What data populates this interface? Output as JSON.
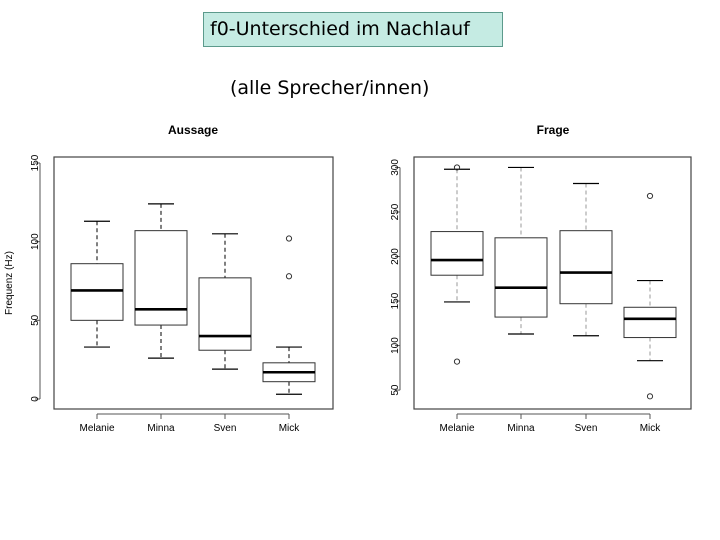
{
  "slide": {
    "title": "f0-Unterschied im Nachlauf",
    "subtitle": "(alle Sprecher/innen)"
  },
  "chart_data": [
    {
      "type": "box",
      "title": "Aussage",
      "ylabel": "Frequenz (Hz)",
      "ylim": [
        0,
        150
      ],
      "yticks": [
        0,
        50,
        100,
        150
      ],
      "categories": [
        "Melanie",
        "Minna",
        "Sven",
        "Mick"
      ],
      "boxes": [
        {
          "min": 33,
          "q1": 50,
          "median": 69,
          "q3": 86,
          "max": 113,
          "outliers": []
        },
        {
          "min": 26,
          "q1": 47,
          "median": 57,
          "q3": 107,
          "max": 124,
          "outliers": []
        },
        {
          "min": 19,
          "q1": 31,
          "median": 40,
          "q3": 77,
          "max": 105,
          "outliers": []
        },
        {
          "min": 3,
          "q1": 11,
          "median": 17,
          "q3": 23,
          "max": 33,
          "outliers": [
            78,
            102
          ]
        }
      ]
    },
    {
      "type": "box",
      "title": "Frage",
      "ylabel": "",
      "ylim": [
        40,
        305
      ],
      "yticks": [
        50,
        100,
        150,
        200,
        250,
        300
      ],
      "categories": [
        "Melanie",
        "Minna",
        "Sven",
        "Mick"
      ],
      "boxes": [
        {
          "min": 149,
          "q1": 179,
          "median": 196,
          "q3": 228,
          "max": 298,
          "outliers": [
            300,
            82
          ]
        },
        {
          "min": 113,
          "q1": 132,
          "median": 165,
          "q3": 221,
          "max": 300,
          "outliers": []
        },
        {
          "min": 111,
          "q1": 147,
          "median": 182,
          "q3": 229,
          "max": 282,
          "outliers": []
        },
        {
          "min": 83,
          "q1": 109,
          "median": 130,
          "q3": 143,
          "max": 173,
          "outliers": [
            268,
            43
          ]
        }
      ]
    }
  ]
}
